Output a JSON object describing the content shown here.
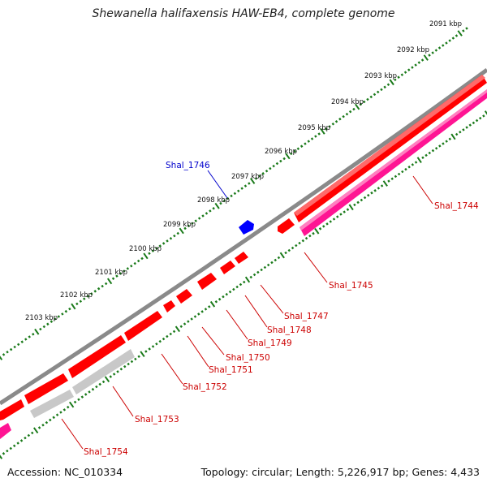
{
  "title": "Shewanella halifaxensis HAW-EB4, complete genome",
  "footer": {
    "accession": "Accession: NC_010334",
    "summary": "Topology: circular; Length: 5,226,917 bp; Genes: 4,433"
  },
  "colors": {
    "backbone": "#8a8a8a",
    "forward_gene": "#ff0000",
    "reverse_gene": "#ff0000",
    "rna_gene": "#ff1493",
    "pseudo_gene": "#bdbdbd",
    "selected_gene": "#0000ff",
    "tick": "#1a7a1a",
    "gene_label": "#cc0000",
    "selected_label": "#0000cc"
  },
  "scale_labels": [
    "2091 kbp",
    "2092 kbp",
    "2093 kbp",
    "2094 kbp",
    "2095 kbp",
    "2096 kbp",
    "2097 kbp",
    "2098 kbp",
    "2099 kbp",
    "2100 kbp",
    "2101 kbp",
    "2102 kbp",
    "2103 kbp"
  ],
  "genes": [
    {
      "label": "Shal_1744",
      "kind": "rna"
    },
    {
      "label": "Shal_1745",
      "kind": "gene"
    },
    {
      "label": "Shal_1746",
      "kind": "selected"
    },
    {
      "label": "Shal_1747",
      "kind": "gene"
    },
    {
      "label": "Shal_1748",
      "kind": "gene"
    },
    {
      "label": "Shal_1749",
      "kind": "gene"
    },
    {
      "label": "Shal_1750",
      "kind": "gene"
    },
    {
      "label": "Shal_1751",
      "kind": "gene"
    },
    {
      "label": "Shal_1752",
      "kind": "gene"
    },
    {
      "label": "Shal_1753",
      "kind": "pseudo"
    },
    {
      "label": "Shal_1754",
      "kind": "gene"
    }
  ]
}
